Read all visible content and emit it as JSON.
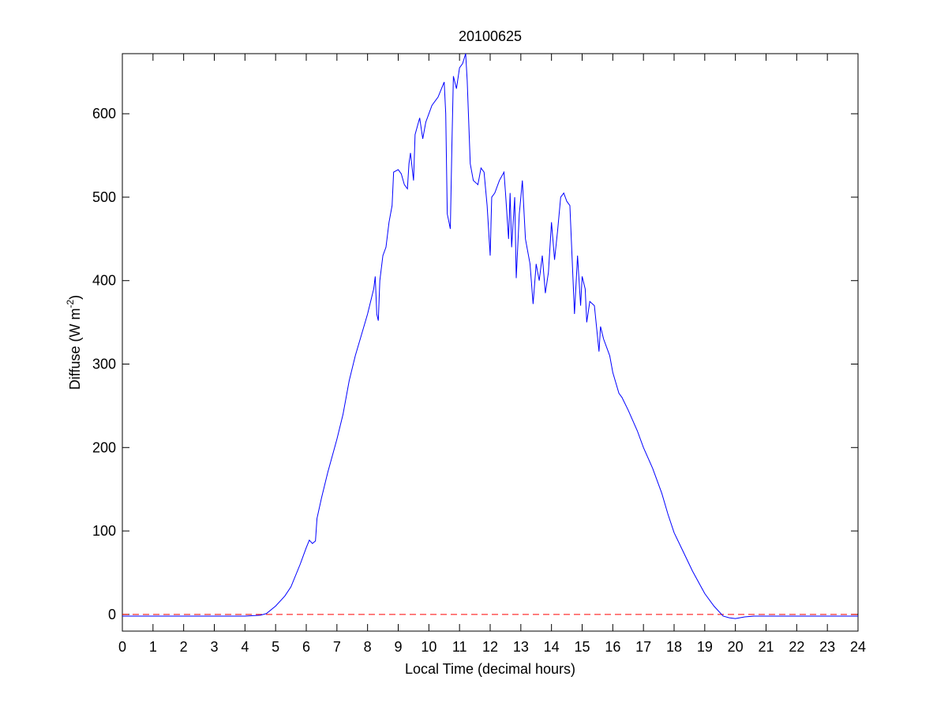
{
  "chart_data": {
    "type": "line",
    "title": "20100625",
    "xlabel": "Local Time (decimal hours)",
    "ylabel": [
      "Diffuse (W m",
      "-2",
      ")"
    ],
    "x": [
      0,
      1,
      2,
      3,
      4,
      4.5,
      4.7,
      5.0,
      5.3,
      5.5,
      5.8,
      6.0,
      6.1,
      6.2,
      6.3,
      6.35,
      6.5,
      6.7,
      7.0,
      7.2,
      7.4,
      7.6,
      7.8,
      8.0,
      8.2,
      8.25,
      8.3,
      8.35,
      8.4,
      8.5,
      8.6,
      8.7,
      8.8,
      8.85,
      9.0,
      9.1,
      9.2,
      9.3,
      9.35,
      9.4,
      9.5,
      9.55,
      9.7,
      9.8,
      9.9,
      10.0,
      10.1,
      10.3,
      10.5,
      10.55,
      10.6,
      10.7,
      10.75,
      10.8,
      10.9,
      11.0,
      11.1,
      11.2,
      11.25,
      11.35,
      11.45,
      11.6,
      11.7,
      11.8,
      11.9,
      12.0,
      12.05,
      12.15,
      12.3,
      12.45,
      12.5,
      12.6,
      12.65,
      12.7,
      12.8,
      12.85,
      12.95,
      13.05,
      13.15,
      13.3,
      13.4,
      13.5,
      13.6,
      13.7,
      13.8,
      13.9,
      14.0,
      14.1,
      14.2,
      14.3,
      14.4,
      14.5,
      14.6,
      14.75,
      14.85,
      14.95,
      15.0,
      15.1,
      15.15,
      15.25,
      15.4,
      15.55,
      15.6,
      15.7,
      15.9,
      16.0,
      16.2,
      16.3,
      16.5,
      16.8,
      17.0,
      17.3,
      17.6,
      17.8,
      18.0,
      18.3,
      18.6,
      19.0,
      19.3,
      19.6,
      19.8,
      20.0,
      20.3,
      20.6,
      22,
      24
    ],
    "series": [
      {
        "color": "#0000ff",
        "values": [
          -2,
          -2,
          -2,
          -2,
          -2,
          -1,
          1,
          10,
          22,
          33,
          60,
          80,
          89,
          85,
          88,
          115,
          140,
          170,
          210,
          240,
          280,
          310,
          335,
          360,
          390,
          405,
          360,
          352,
          400,
          430,
          440,
          470,
          490,
          530,
          533,
          528,
          515,
          510,
          540,
          553,
          520,
          575,
          595,
          570,
          590,
          600,
          610,
          620,
          638,
          600,
          480,
          462,
          560,
          645,
          630,
          655,
          660,
          672,
          640,
          540,
          520,
          515,
          535,
          530,
          490,
          430,
          500,
          505,
          520,
          530,
          505,
          450,
          505,
          440,
          500,
          403,
          480,
          520,
          450,
          420,
          372,
          420,
          400,
          430,
          385,
          410,
          470,
          425,
          460,
          500,
          505,
          495,
          490,
          360,
          430,
          370,
          405,
          390,
          350,
          375,
          370,
          315,
          345,
          330,
          310,
          290,
          265,
          260,
          245,
          220,
          200,
          175,
          145,
          120,
          98,
          75,
          52,
          25,
          10,
          -2,
          -4,
          -5,
          -3,
          -2,
          -2,
          -2
        ]
      }
    ],
    "hline": {
      "value": 0,
      "color": "#ff0000"
    },
    "xlim": [
      0,
      24
    ],
    "ylim": [
      -20,
      672
    ],
    "xticks": [
      0,
      1,
      2,
      3,
      4,
      5,
      6,
      7,
      8,
      9,
      10,
      11,
      12,
      13,
      14,
      15,
      16,
      17,
      18,
      19,
      20,
      21,
      22,
      23,
      24
    ],
    "yticks": [
      0,
      100,
      200,
      300,
      400,
      500,
      600
    ]
  }
}
